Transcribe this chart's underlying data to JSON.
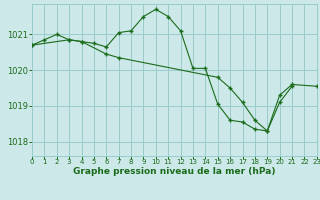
{
  "background_color": "#cce8e8",
  "grid_color": "#99cccc",
  "line_color": "#1a6b1a",
  "xlabel": "Graphe pression niveau de la mer (hPa)",
  "ylim": [
    1017.6,
    1021.85
  ],
  "xlim": [
    0,
    23
  ],
  "yticks": [
    1018,
    1019,
    1020,
    1021
  ],
  "xticks": [
    0,
    1,
    2,
    3,
    4,
    5,
    6,
    7,
    8,
    9,
    10,
    11,
    12,
    13,
    14,
    15,
    16,
    17,
    18,
    19,
    20,
    21,
    22,
    23
  ],
  "line1_x": [
    0,
    1,
    2,
    3,
    4,
    5,
    6,
    7,
    8,
    9,
    10,
    11,
    12,
    13,
    14,
    15,
    16,
    17,
    18,
    19,
    20,
    21
  ],
  "line1_y": [
    1020.7,
    1020.85,
    1021.0,
    1020.85,
    1020.8,
    1020.75,
    1020.65,
    1021.05,
    1021.1,
    1021.5,
    1021.7,
    1021.5,
    1021.1,
    1020.05,
    1020.05,
    1019.05,
    1018.6,
    1018.55,
    1018.35,
    1018.3,
    1019.1,
    1019.55
  ],
  "line2_x": [
    0,
    3,
    4,
    6,
    7,
    15,
    16,
    17,
    18,
    19,
    20,
    21,
    23
  ],
  "line2_y": [
    1020.7,
    1020.85,
    1020.8,
    1020.45,
    1020.35,
    1019.8,
    1019.5,
    1019.1,
    1018.6,
    1018.3,
    1019.3,
    1019.6,
    1019.55
  ]
}
